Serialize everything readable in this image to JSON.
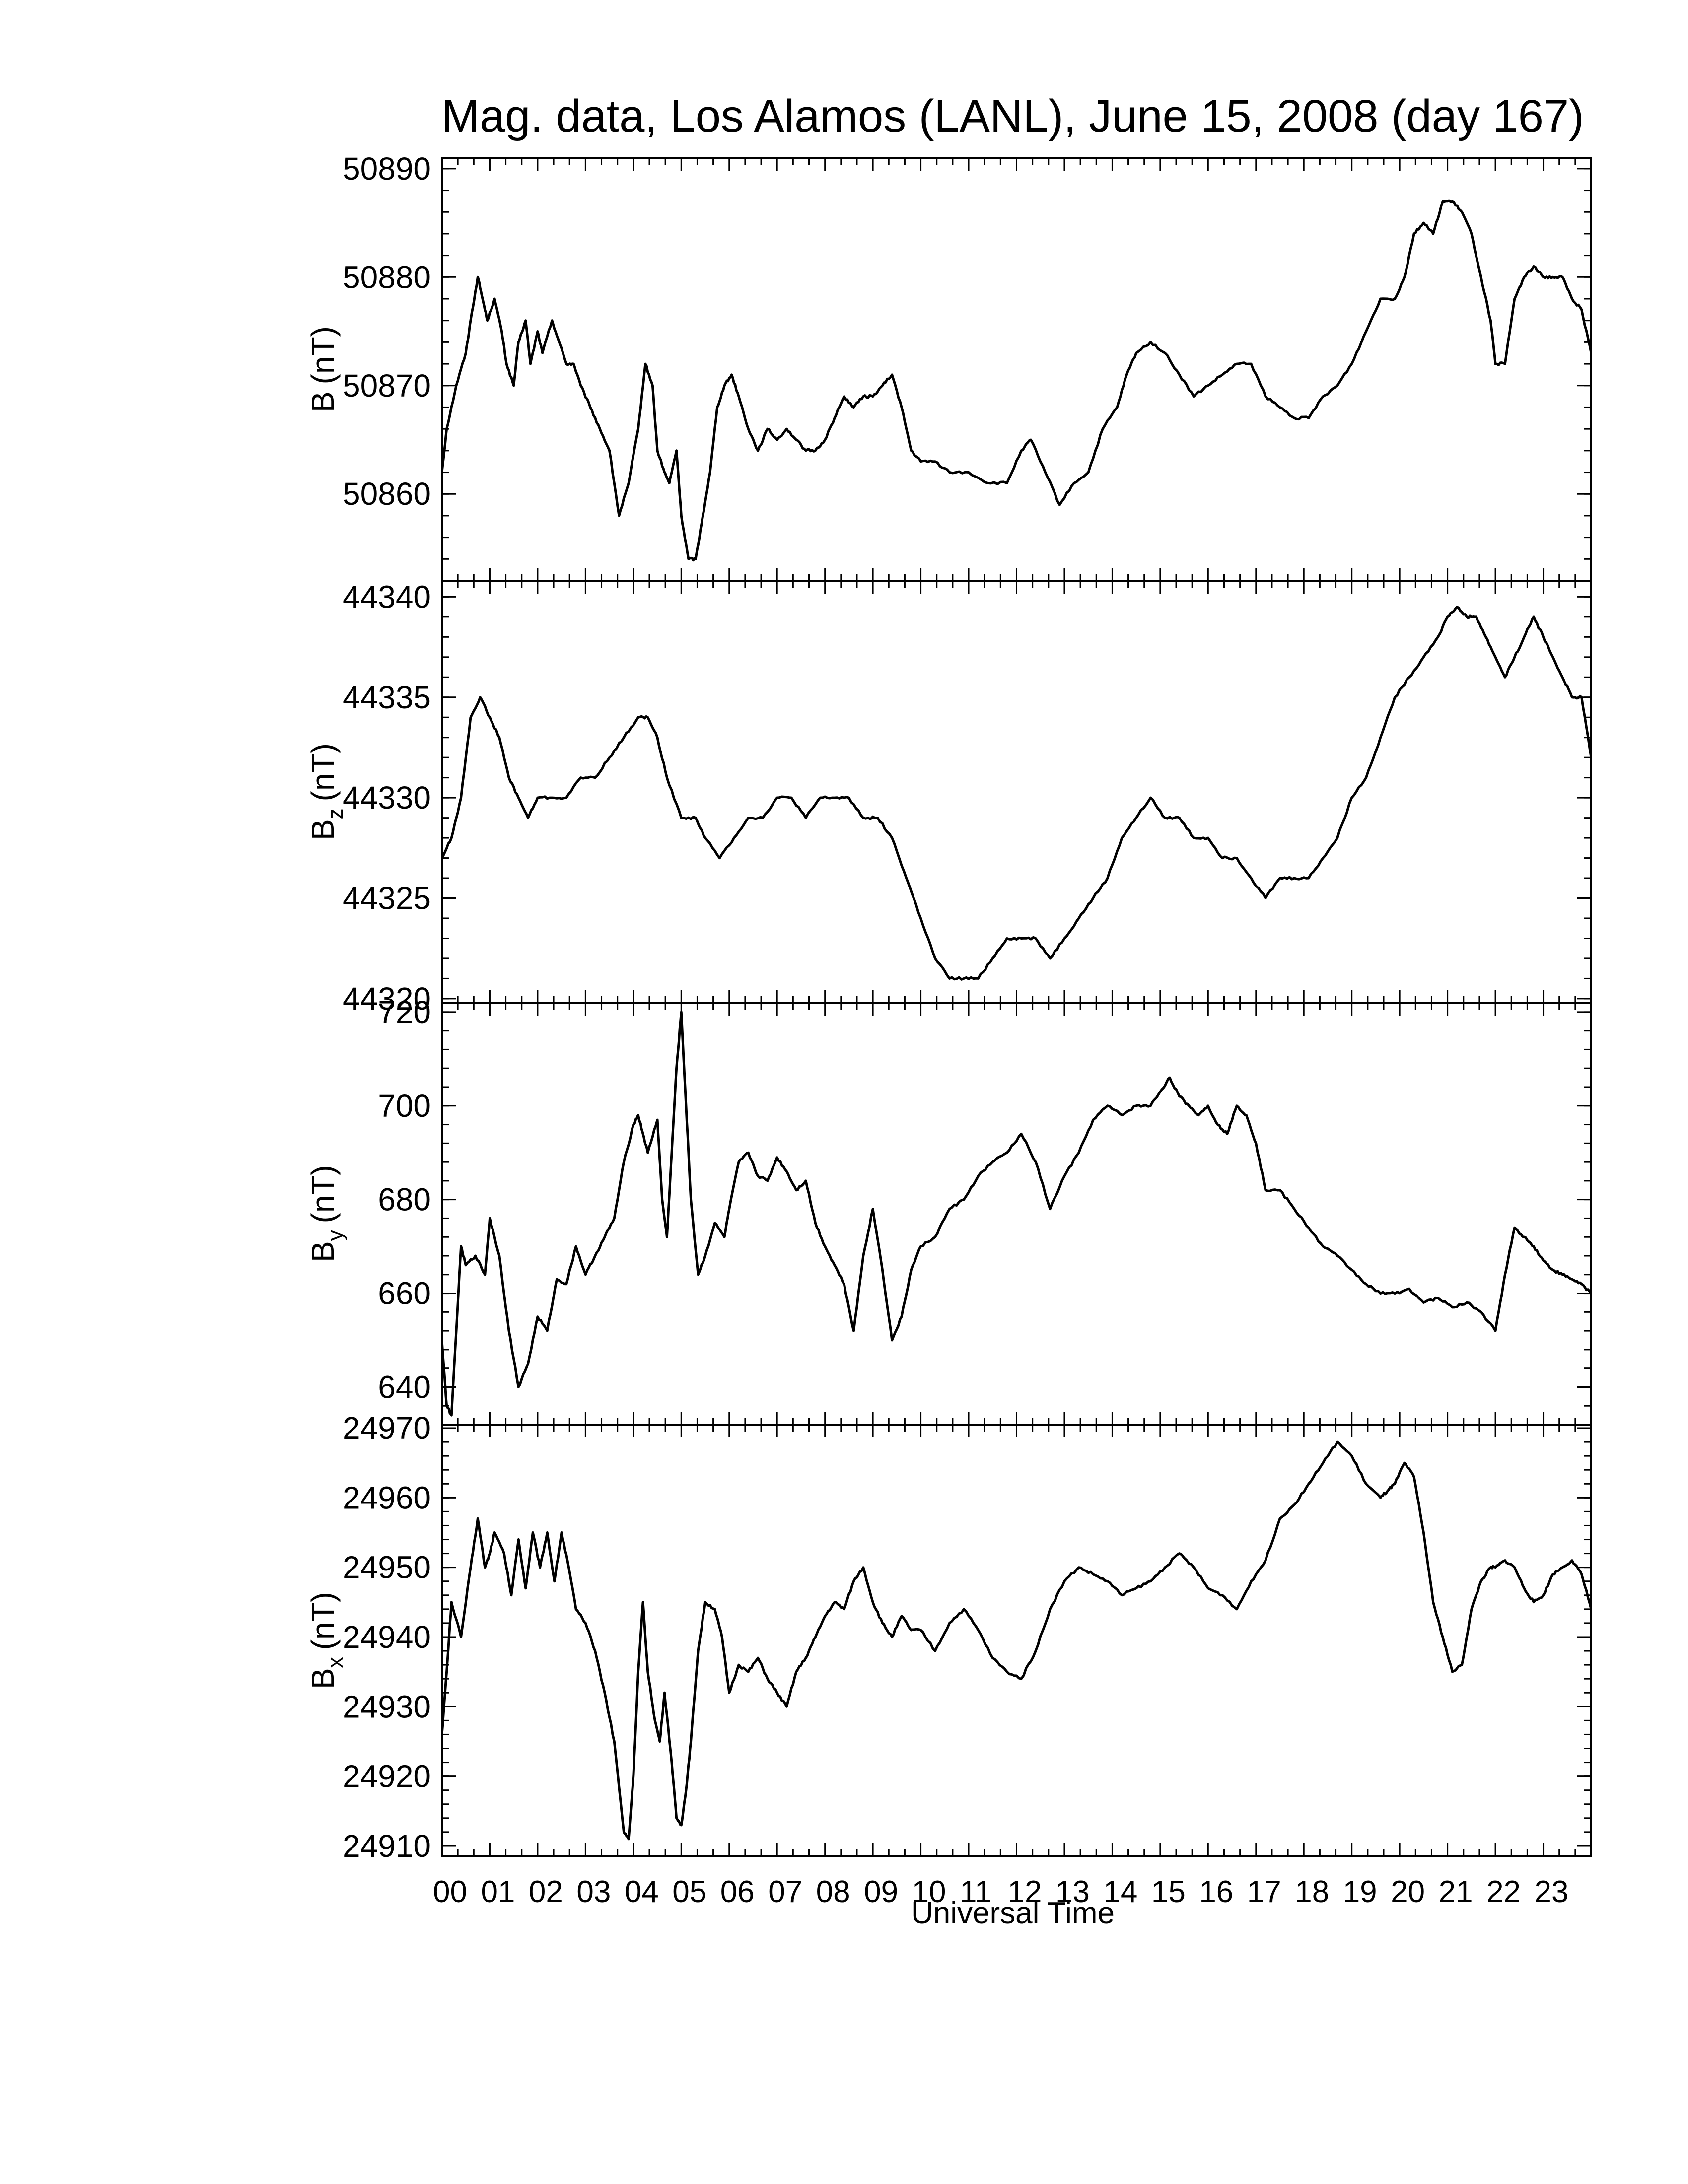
{
  "figure": {
    "title": "Mag. data, Los Alamos (LANL), June 15, 2008 (day 167)",
    "xlabel": "Universal Time",
    "line_color": "#000000",
    "background": "#ffffff"
  },
  "chart_data": [
    {
      "type": "line",
      "ylabel": "B (nT)",
      "ylabel_base": "B",
      "ylabel_sub": "",
      "ylabel_unit": "(nT)",
      "ylim": [
        50852,
        50891
      ],
      "yticks": [
        50860,
        50870,
        50880,
        50890
      ],
      "ytick_labels": [
        "50860",
        "50870",
        "50880",
        "50890"
      ],
      "xlim": [
        0,
        24
      ],
      "x": [
        0.0,
        0.1,
        0.3,
        0.5,
        0.6,
        0.75,
        0.85,
        0.95,
        1.1,
        1.25,
        1.35,
        1.5,
        1.6,
        1.75,
        1.85,
        2.0,
        2.1,
        2.3,
        2.45,
        2.6,
        2.75,
        2.9,
        3.1,
        3.3,
        3.5,
        3.7,
        3.9,
        4.1,
        4.25,
        4.4,
        4.5,
        4.65,
        4.75,
        4.9,
        5.0,
        5.15,
        5.3,
        5.45,
        5.6,
        5.75,
        5.9,
        6.05,
        6.2,
        6.4,
        6.6,
        6.8,
        7.0,
        7.2,
        7.4,
        7.6,
        7.8,
        8.0,
        8.2,
        8.4,
        8.6,
        8.8,
        9.0,
        9.2,
        9.4,
        9.6,
        9.8,
        10.0,
        10.3,
        10.6,
        11.0,
        11.4,
        11.8,
        12.1,
        12.3,
        12.6,
        12.9,
        13.2,
        13.5,
        13.8,
        14.1,
        14.3,
        14.5,
        14.8,
        15.1,
        15.4,
        15.7,
        16.0,
        16.3,
        16.6,
        16.9,
        17.2,
        17.5,
        17.8,
        18.1,
        18.4,
        18.7,
        19.0,
        19.3,
        19.6,
        19.9,
        20.1,
        20.3,
        20.5,
        20.7,
        20.9,
        21.1,
        21.3,
        21.5,
        21.7,
        21.9,
        22.0,
        22.2,
        22.4,
        22.6,
        22.8,
        23.0,
        23.2,
        23.4,
        23.6,
        23.8,
        24.0
      ],
      "y": [
        50862,
        50866,
        50870,
        50873,
        50876,
        50880,
        50878,
        50876,
        50878,
        50875,
        50872,
        50870,
        50874,
        50876,
        50872,
        50875,
        50873,
        50876,
        50874,
        50872,
        50872,
        50870,
        50868,
        50866,
        50864,
        50858,
        50861,
        50866,
        50872,
        50870,
        50864,
        50862,
        50861,
        50864,
        50858,
        50854,
        50854,
        50858,
        50862,
        50868,
        50870,
        50871,
        50869,
        50866,
        50864,
        50866,
        50865,
        50866,
        50865,
        50864,
        50864,
        50865,
        50867,
        50869,
        50868,
        50869,
        50869,
        50870,
        50871,
        50868,
        50864,
        50863,
        50863,
        50862,
        50862,
        50861,
        50861,
        50864,
        50865,
        50862,
        50859,
        50861,
        50862,
        50866,
        50868,
        50871,
        50873,
        50874,
        50873,
        50871,
        50869,
        50870,
        50871,
        50872,
        50872,
        50869,
        50868,
        50867,
        50867,
        50869,
        50870,
        50872,
        50875,
        50878,
        50878,
        50880,
        50884,
        50885,
        50884,
        50887,
        50887,
        50886,
        50884,
        50880,
        50876,
        50872,
        50872,
        50878,
        50880,
        50881,
        50880,
        50880,
        50880,
        50878,
        50877,
        50873
      ]
    },
    {
      "type": "line",
      "ylabel": "Bz (nT)",
      "ylabel_base": "B",
      "ylabel_sub": "z",
      "ylabel_unit": "(nT)",
      "ylim": [
        44319.8,
        44340.8
      ],
      "yticks": [
        44320,
        44325,
        44330,
        44335,
        44340
      ],
      "ytick_labels": [
        "44320",
        "44325",
        "44330",
        "44335",
        "44340"
      ],
      "xlim": [
        0,
        24
      ],
      "x": [
        0.0,
        0.2,
        0.4,
        0.6,
        0.8,
        1.0,
        1.2,
        1.4,
        1.6,
        1.8,
        2.0,
        2.3,
        2.6,
        2.9,
        3.2,
        3.5,
        3.8,
        4.1,
        4.3,
        4.5,
        4.7,
        5.0,
        5.3,
        5.5,
        5.8,
        6.1,
        6.4,
        6.7,
        7.0,
        7.3,
        7.6,
        7.9,
        8.2,
        8.5,
        8.8,
        9.1,
        9.4,
        9.7,
        10.0,
        10.3,
        10.6,
        10.9,
        11.2,
        11.5,
        11.8,
        12.1,
        12.4,
        12.7,
        13.0,
        13.3,
        13.6,
        13.9,
        14.2,
        14.5,
        14.8,
        15.1,
        15.4,
        15.7,
        16.0,
        16.3,
        16.6,
        16.9,
        17.2,
        17.5,
        17.8,
        18.1,
        18.4,
        18.7,
        19.0,
        19.3,
        19.6,
        19.9,
        20.2,
        20.5,
        20.8,
        21.0,
        21.2,
        21.4,
        21.6,
        21.8,
        22.0,
        22.2,
        22.4,
        22.6,
        22.8,
        23.0,
        23.2,
        23.4,
        23.6,
        23.8,
        24.0
      ],
      "y": [
        44327,
        44328,
        44330,
        44334,
        44335,
        44334,
        44333,
        44331,
        44330,
        44329,
        44330,
        44330,
        44330,
        44331,
        44331,
        44332,
        44333,
        44334,
        44334,
        44333,
        44331,
        44329,
        44329,
        44328,
        44327,
        44328,
        44329,
        44329,
        44330,
        44330,
        44329,
        44330,
        44330,
        44330,
        44329,
        44329,
        44328,
        44326,
        44324,
        44322,
        44321,
        44321,
        44321,
        44322,
        44323,
        44323,
        44323,
        44322,
        44323,
        44324,
        44325,
        44326,
        44328,
        44329,
        44330,
        44329,
        44329,
        44328,
        44328,
        44327,
        44327,
        44326,
        44325,
        44326,
        44326,
        44326,
        44327,
        44328,
        44330,
        44331,
        44333,
        44335,
        44336,
        44337,
        44338,
        44339,
        44339.5,
        44339,
        44339,
        44338,
        44337,
        44336,
        44337,
        44338,
        44339,
        44338,
        44337,
        44336,
        44335,
        44335,
        44332
      ]
    },
    {
      "type": "line",
      "ylabel": "By (nT)",
      "ylabel_base": "B",
      "ylabel_sub": "y",
      "ylabel_unit": "(nT)",
      "ylim": [
        632,
        722
      ],
      "yticks": [
        640,
        660,
        680,
        700,
        720
      ],
      "ytick_labels": [
        "640",
        "660",
        "680",
        "700",
        "720"
      ],
      "xlim": [
        0,
        24
      ],
      "x": [
        0.0,
        0.1,
        0.2,
        0.4,
        0.5,
        0.7,
        0.9,
        1.0,
        1.2,
        1.4,
        1.6,
        1.8,
        2.0,
        2.2,
        2.4,
        2.6,
        2.8,
        3.0,
        3.2,
        3.4,
        3.6,
        3.8,
        4.0,
        4.1,
        4.2,
        4.3,
        4.5,
        4.6,
        4.7,
        4.8,
        4.9,
        5.0,
        5.1,
        5.2,
        5.35,
        5.5,
        5.7,
        5.9,
        6.0,
        6.2,
        6.4,
        6.6,
        6.8,
        7.0,
        7.2,
        7.4,
        7.6,
        7.8,
        8.0,
        8.2,
        8.4,
        8.6,
        8.8,
        9.0,
        9.2,
        9.4,
        9.6,
        9.8,
        10.0,
        10.3,
        10.6,
        10.9,
        11.2,
        11.5,
        11.8,
        12.1,
        12.4,
        12.7,
        13.0,
        13.3,
        13.6,
        13.9,
        14.2,
        14.5,
        14.8,
        15.0,
        15.2,
        15.4,
        15.6,
        15.8,
        16.0,
        16.2,
        16.4,
        16.6,
        16.8,
        17.0,
        17.2,
        17.5,
        17.8,
        18.1,
        18.4,
        18.7,
        19.0,
        19.3,
        19.6,
        19.9,
        20.2,
        20.5,
        20.8,
        21.1,
        21.4,
        21.7,
        22.0,
        22.2,
        22.4,
        22.6,
        22.8,
        23.0,
        23.2,
        23.4,
        23.6,
        23.8,
        24.0
      ],
      "y": [
        650,
        636,
        634,
        670,
        666,
        668,
        664,
        676,
        668,
        652,
        640,
        645,
        655,
        652,
        663,
        662,
        670,
        664,
        668,
        672,
        676,
        688,
        696,
        698,
        694,
        690,
        697,
        680,
        672,
        690,
        708,
        720,
        700,
        680,
        664,
        668,
        675,
        672,
        678,
        688,
        690,
        685,
        684,
        689,
        686,
        682,
        684,
        675,
        670,
        666,
        662,
        652,
        668,
        678,
        665,
        650,
        655,
        665,
        670,
        672,
        678,
        680,
        685,
        688,
        690,
        694,
        688,
        678,
        685,
        690,
        697,
        700,
        698,
        700,
        700,
        703,
        706,
        702,
        700,
        698,
        700,
        696,
        694,
        700,
        698,
        692,
        682,
        682,
        678,
        674,
        670,
        668,
        665,
        662,
        660,
        660,
        661,
        658,
        659,
        657,
        658,
        656,
        652,
        664,
        674,
        672,
        670,
        667,
        665,
        664,
        663,
        662,
        660
      ]
    },
    {
      "type": "line",
      "ylabel": "Bx (nT)",
      "ylabel_base": "B",
      "ylabel_sub": "x",
      "ylabel_unit": "(nT)",
      "ylim": [
        24908.5,
        24970.5
      ],
      "yticks": [
        24910,
        24920,
        24930,
        24940,
        24950,
        24960,
        24970
      ],
      "ytick_labels": [
        "24910",
        "24920",
        "24930",
        "24940",
        "24950",
        "24960",
        "24970"
      ],
      "xlim": [
        0,
        24
      ],
      "x": [
        0.0,
        0.1,
        0.2,
        0.4,
        0.6,
        0.75,
        0.9,
        1.0,
        1.1,
        1.3,
        1.45,
        1.6,
        1.75,
        1.9,
        2.05,
        2.2,
        2.35,
        2.5,
        2.65,
        2.8,
        3.0,
        3.2,
        3.4,
        3.6,
        3.8,
        3.9,
        4.0,
        4.1,
        4.2,
        4.3,
        4.45,
        4.55,
        4.65,
        4.8,
        4.9,
        5.0,
        5.1,
        5.2,
        5.35,
        5.5,
        5.7,
        5.85,
        6.0,
        6.2,
        6.4,
        6.6,
        6.8,
        7.0,
        7.2,
        7.4,
        7.6,
        7.8,
        8.0,
        8.2,
        8.4,
        8.6,
        8.8,
        9.0,
        9.2,
        9.4,
        9.6,
        9.8,
        10.0,
        10.3,
        10.6,
        10.9,
        11.2,
        11.5,
        11.8,
        12.1,
        12.4,
        12.7,
        13.0,
        13.3,
        13.6,
        13.9,
        14.2,
        14.5,
        14.8,
        15.1,
        15.4,
        15.7,
        16.0,
        16.3,
        16.6,
        16.9,
        17.2,
        17.5,
        17.8,
        18.1,
        18.4,
        18.7,
        19.0,
        19.3,
        19.6,
        19.75,
        19.9,
        20.1,
        20.3,
        20.5,
        20.7,
        20.9,
        21.1,
        21.3,
        21.5,
        21.7,
        21.9,
        22.0,
        22.2,
        22.4,
        22.6,
        22.8,
        23.0,
        23.2,
        23.4,
        23.6,
        23.8,
        24.0
      ],
      "y": [
        24926,
        24935,
        24945,
        24940,
        24950,
        24957,
        24950,
        24952,
        24955,
        24952,
        24946,
        24954,
        24947,
        24955,
        24950,
        24955,
        24948,
        24955,
        24950,
        24944,
        24942,
        24938,
        24932,
        24925,
        24912,
        24911,
        24920,
        24935,
        24945,
        24935,
        24928,
        24925,
        24932,
        24922,
        24914,
        24913,
        24918,
        24925,
        24938,
        24945,
        24944,
        24940,
        24932,
        24936,
        24935,
        24937,
        24934,
        24932,
        24930,
        24935,
        24937,
        24940,
        24943,
        24945,
        24944,
        24948,
        24950,
        24945,
        24942,
        24940,
        24943,
        24941,
        24941,
        24938,
        24942,
        24944,
        24941,
        24937,
        24935,
        24934,
        24938,
        24944,
        24948,
        24950,
        24949,
        24948,
        24946,
        24947,
        24948,
        24950,
        24952,
        24950,
        24947,
        24946,
        24944,
        24948,
        24951,
        24957,
        24959,
        24962,
        24965,
        24968,
        24966,
        24962,
        24960,
        24961,
        24962,
        24965,
        24963,
        24955,
        24945,
        24940,
        24935,
        24936,
        24944,
        24948,
        24950,
        24950,
        24951,
        24950,
        24947,
        24945,
        24946,
        24949,
        24950,
        24951,
        24949,
        24944
      ]
    }
  ],
  "xaxis": {
    "ticks": [
      0,
      1,
      2,
      3,
      4,
      5,
      6,
      7,
      8,
      9,
      10,
      11,
      12,
      13,
      14,
      15,
      16,
      17,
      18,
      19,
      20,
      21,
      22,
      23
    ],
    "tick_labels": [
      "00",
      "01",
      "02",
      "03",
      "04",
      "05",
      "06",
      "07",
      "08",
      "09",
      "10",
      "11",
      "12",
      "13",
      "14",
      "15",
      "16",
      "17",
      "18",
      "19",
      "20",
      "21",
      "22",
      "23"
    ]
  }
}
